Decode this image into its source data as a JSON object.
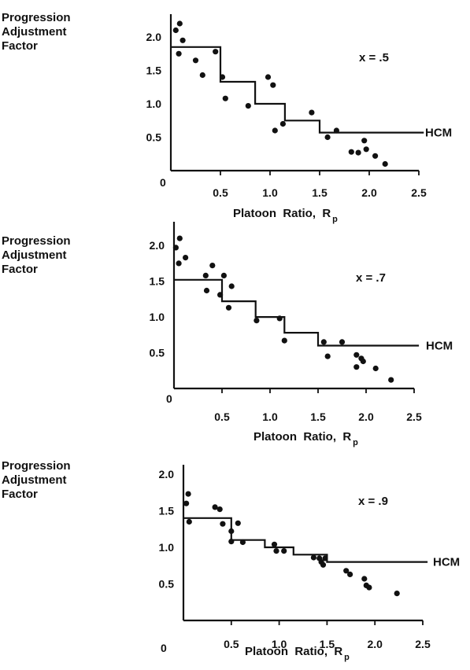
{
  "chart_data": [
    {
      "type": "scatter",
      "ylabel": [
        "Progression",
        "Adjustment",
        "Factor"
      ],
      "xlabel": "Platoon  Ratio,  R",
      "xlabel_subscript": "p",
      "annotation": "x  =  .5",
      "line_label": "HCM",
      "xlim": [
        0,
        2.5
      ],
      "ylim": [
        0,
        2.2
      ],
      "xticks": [
        "0.5",
        "1.0",
        "1.5",
        "2.0",
        "2.5"
      ],
      "yticks": [
        "0.5",
        "1.0",
        "1.5",
        "2.0"
      ],
      "origin_label": "0",
      "hcm_step": {
        "x": [
          0,
          0.5,
          0.5,
          0.85,
          0.85,
          1.15,
          1.15,
          1.5,
          1.5,
          2.55
        ],
        "y": [
          1.85,
          1.85,
          1.33,
          1.33,
          1.0,
          1.0,
          0.75,
          0.75,
          0.57,
          0.57
        ]
      },
      "points": [
        {
          "x": 0.05,
          "y": 2.1
        },
        {
          "x": 0.09,
          "y": 2.2
        },
        {
          "x": 0.12,
          "y": 1.95
        },
        {
          "x": 0.08,
          "y": 1.75
        },
        {
          "x": 0.25,
          "y": 1.65
        },
        {
          "x": 0.32,
          "y": 1.43
        },
        {
          "x": 0.45,
          "y": 1.78
        },
        {
          "x": 0.52,
          "y": 1.4
        },
        {
          "x": 0.55,
          "y": 1.08
        },
        {
          "x": 0.78,
          "y": 0.97
        },
        {
          "x": 0.98,
          "y": 1.4
        },
        {
          "x": 1.03,
          "y": 1.28
        },
        {
          "x": 1.05,
          "y": 0.6
        },
        {
          "x": 1.13,
          "y": 0.7
        },
        {
          "x": 1.42,
          "y": 0.87
        },
        {
          "x": 1.58,
          "y": 0.5
        },
        {
          "x": 1.67,
          "y": 0.6
        },
        {
          "x": 1.82,
          "y": 0.28
        },
        {
          "x": 1.89,
          "y": 0.27
        },
        {
          "x": 1.95,
          "y": 0.45
        },
        {
          "x": 1.97,
          "y": 0.32
        },
        {
          "x": 2.06,
          "y": 0.22
        },
        {
          "x": 2.16,
          "y": 0.1
        }
      ]
    },
    {
      "type": "scatter",
      "ylabel": [
        "Progression",
        "Adjustment",
        "Factor"
      ],
      "xlabel": "Platoon  Ratio,  R",
      "xlabel_subscript": "p",
      "annotation": "x  =  .7",
      "line_label": "HCM",
      "xlim": [
        0,
        2.5
      ],
      "ylim": [
        0,
        2.2
      ],
      "xticks": [
        "0.5",
        "1.0",
        "1.5",
        "2.0",
        "2.5"
      ],
      "yticks": [
        "0.5",
        "1.0",
        "1.5",
        "2.0"
      ],
      "origin_label": "0",
      "hcm_step": {
        "x": [
          0,
          0.5,
          0.5,
          0.85,
          0.85,
          1.15,
          1.15,
          1.5,
          1.5,
          2.55
        ],
        "y": [
          1.52,
          1.52,
          1.22,
          1.22,
          1.0,
          1.0,
          0.78,
          0.78,
          0.6,
          0.6
        ]
      },
      "points": [
        {
          "x": 0.02,
          "y": 1.97
        },
        {
          "x": 0.06,
          "y": 2.1
        },
        {
          "x": 0.05,
          "y": 1.75
        },
        {
          "x": 0.12,
          "y": 1.83
        },
        {
          "x": 0.33,
          "y": 1.58
        },
        {
          "x": 0.4,
          "y": 1.72
        },
        {
          "x": 0.34,
          "y": 1.37
        },
        {
          "x": 0.48,
          "y": 1.31
        },
        {
          "x": 0.52,
          "y": 1.58
        },
        {
          "x": 0.57,
          "y": 1.13
        },
        {
          "x": 0.6,
          "y": 1.43
        },
        {
          "x": 0.86,
          "y": 0.95
        },
        {
          "x": 1.1,
          "y": 0.98
        },
        {
          "x": 1.15,
          "y": 0.67
        },
        {
          "x": 1.56,
          "y": 0.65
        },
        {
          "x": 1.6,
          "y": 0.45
        },
        {
          "x": 1.75,
          "y": 0.65
        },
        {
          "x": 1.9,
          "y": 0.47
        },
        {
          "x": 1.95,
          "y": 0.42
        },
        {
          "x": 1.97,
          "y": 0.38
        },
        {
          "x": 1.9,
          "y": 0.3
        },
        {
          "x": 2.1,
          "y": 0.28
        },
        {
          "x": 2.26,
          "y": 0.12
        }
      ]
    },
    {
      "type": "scatter",
      "ylabel": [
        "Progression",
        "Adjustment",
        "Factor"
      ],
      "xlabel": "Platoon  Ratio,  R",
      "xlabel_subscript": "p",
      "annotation": "x  =  .9",
      "line_label": "HCM",
      "xlim": [
        0,
        2.5
      ],
      "ylim": [
        0,
        2.0
      ],
      "xticks": [
        "0.5",
        "1.0",
        "1.5",
        "2.0",
        "2.5"
      ],
      "yticks": [
        "0.5",
        "1.0",
        "1.5",
        "2.0"
      ],
      "origin_label": "0",
      "hcm_step": {
        "x": [
          0,
          0.5,
          0.5,
          0.85,
          0.85,
          1.15,
          1.15,
          1.5,
          1.5,
          2.55
        ],
        "y": [
          1.4,
          1.4,
          1.1,
          1.1,
          1.0,
          1.0,
          0.9,
          0.9,
          0.8,
          0.8
        ]
      },
      "points": [
        {
          "x": 0.05,
          "y": 1.73
        },
        {
          "x": 0.03,
          "y": 1.6
        },
        {
          "x": 0.06,
          "y": 1.35
        },
        {
          "x": 0.33,
          "y": 1.55
        },
        {
          "x": 0.38,
          "y": 1.52
        },
        {
          "x": 0.41,
          "y": 1.32
        },
        {
          "x": 0.5,
          "y": 1.22
        },
        {
          "x": 0.5,
          "y": 1.08
        },
        {
          "x": 0.57,
          "y": 1.33
        },
        {
          "x": 0.62,
          "y": 1.07
        },
        {
          "x": 0.95,
          "y": 1.04
        },
        {
          "x": 0.97,
          "y": 0.95
        },
        {
          "x": 1.05,
          "y": 0.95
        },
        {
          "x": 1.36,
          "y": 0.86
        },
        {
          "x": 1.42,
          "y": 0.85
        },
        {
          "x": 1.44,
          "y": 0.8
        },
        {
          "x": 1.46,
          "y": 0.76
        },
        {
          "x": 1.48,
          "y": 0.85
        },
        {
          "x": 1.7,
          "y": 0.68
        },
        {
          "x": 1.74,
          "y": 0.63
        },
        {
          "x": 1.89,
          "y": 0.57
        },
        {
          "x": 1.91,
          "y": 0.48
        },
        {
          "x": 1.94,
          "y": 0.45
        },
        {
          "x": 2.23,
          "y": 0.37
        }
      ]
    }
  ]
}
